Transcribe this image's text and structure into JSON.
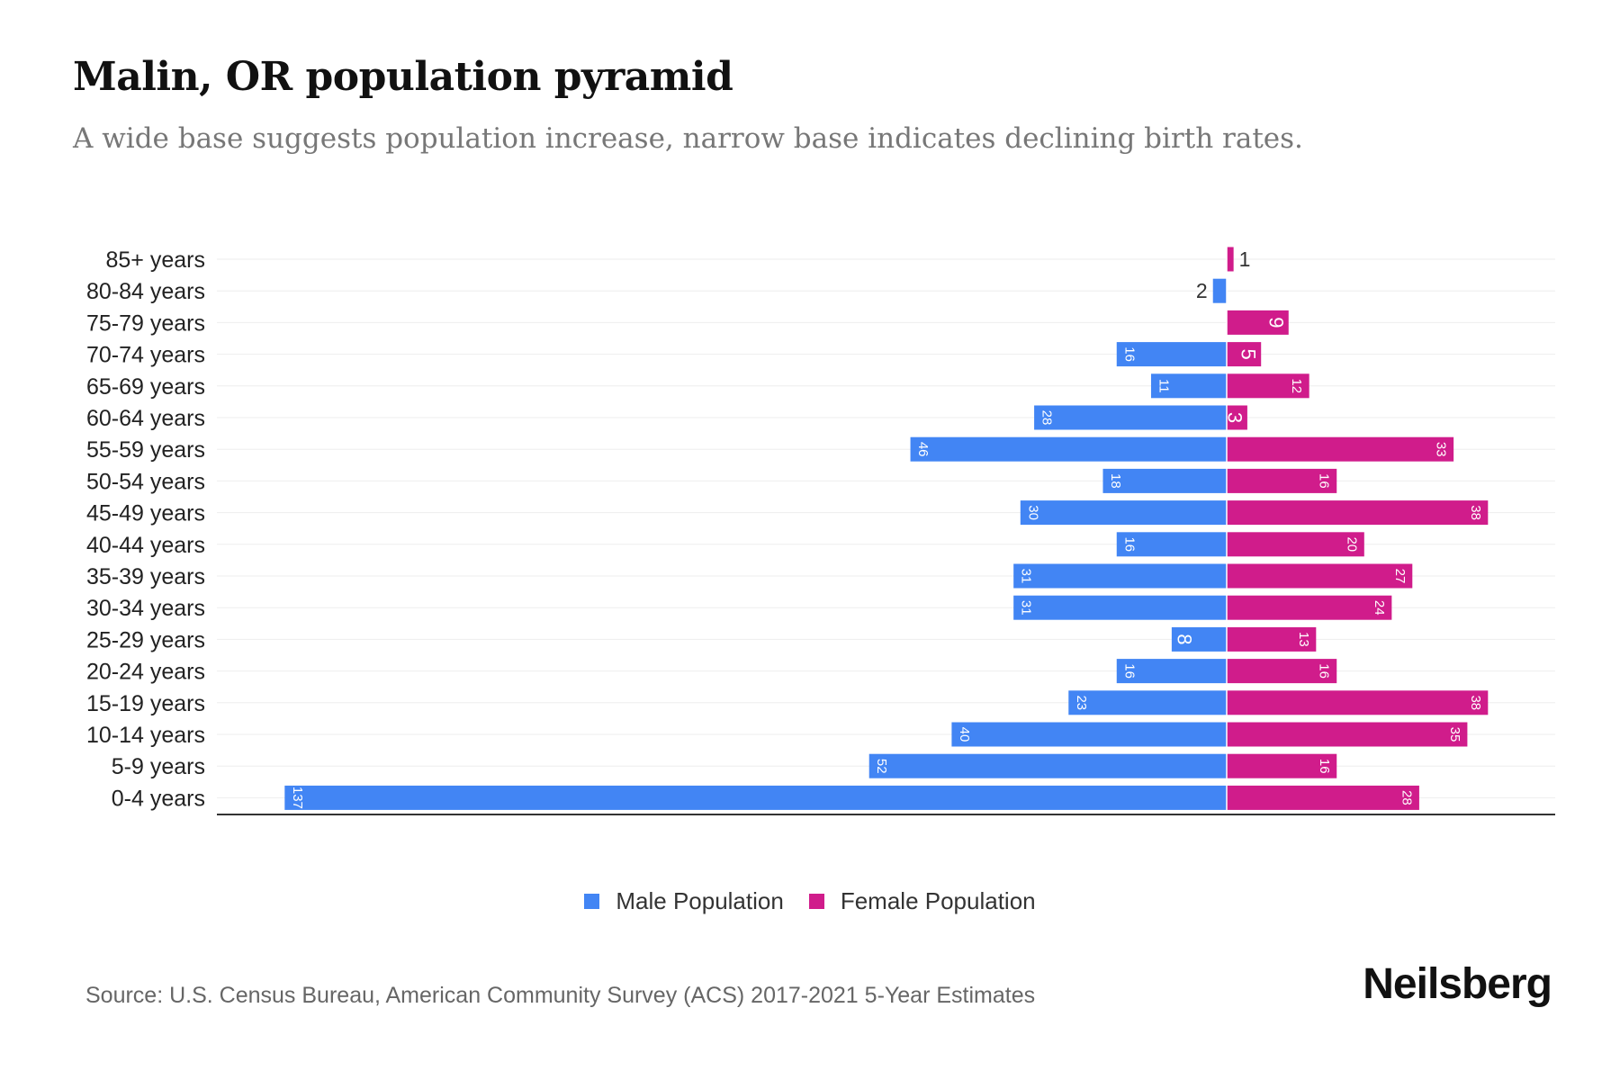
{
  "chart_data": {
    "type": "bar",
    "orientation": "horizontal-pyramid",
    "title": "Malin, OR population pyramid",
    "subtitle": "A wide base suggests population increase, narrow base indicates declining birth rates.",
    "categories": [
      "85+ years",
      "80-84 years",
      "75-79 years",
      "70-74 years",
      "65-69 years",
      "60-64 years",
      "55-59 years",
      "50-54 years",
      "45-49 years",
      "40-44 years",
      "35-39 years",
      "30-34 years",
      "25-29 years",
      "20-24 years",
      "15-19 years",
      "10-14 years",
      "5-9 years",
      "0-4 years"
    ],
    "series": [
      {
        "name": "Male Population",
        "color": "#4285f4",
        "values": [
          0,
          2,
          0,
          16,
          11,
          28,
          46,
          18,
          30,
          16,
          31,
          31,
          8,
          16,
          23,
          40,
          52,
          137
        ]
      },
      {
        "name": "Female Population",
        "color": "#d01c8b",
        "values": [
          1,
          0,
          9,
          5,
          12,
          3,
          33,
          16,
          38,
          20,
          27,
          24,
          13,
          16,
          38,
          35,
          16,
          28
        ]
      }
    ],
    "grid": true,
    "legend_position": "bottom-center"
  },
  "source": "Source: U.S. Census Bureau, American Community Survey (ACS) 2017-2021 5-Year Estimates",
  "logo": "Neilsberg"
}
